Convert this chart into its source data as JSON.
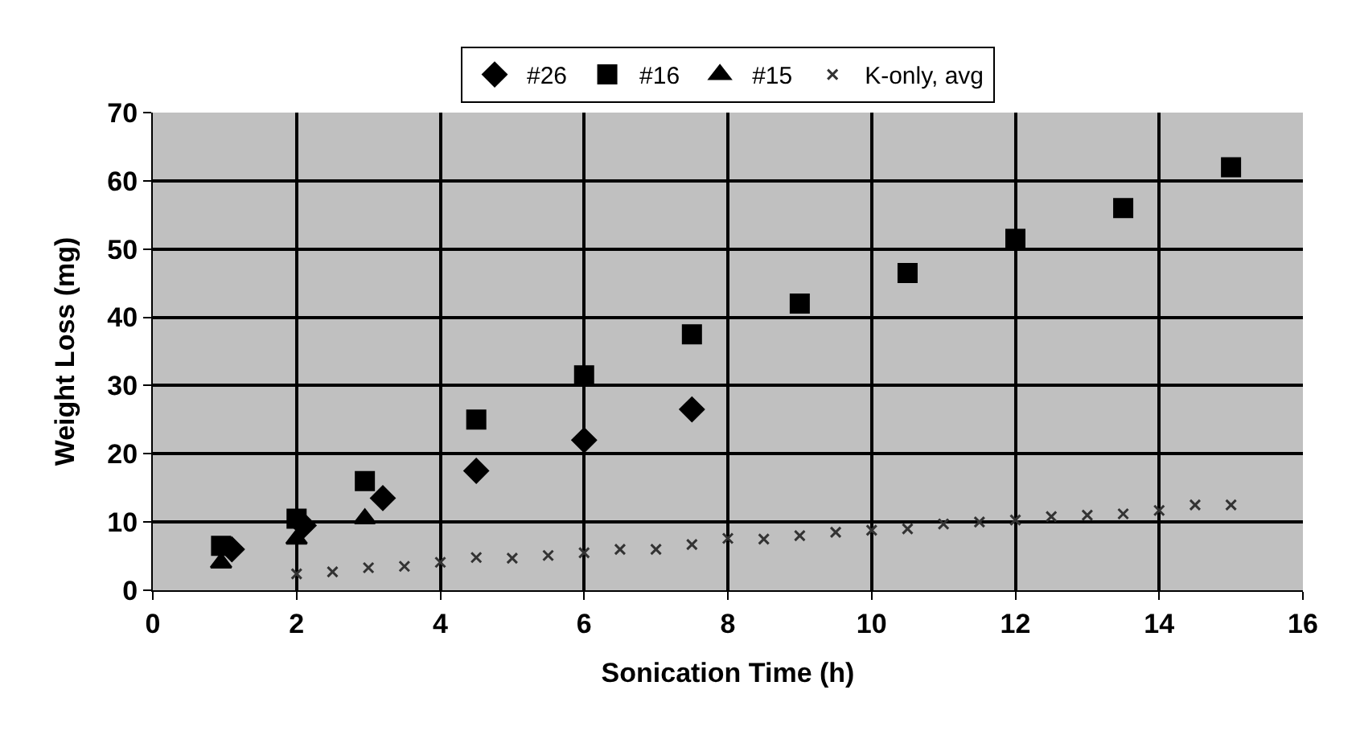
{
  "chart_data": {
    "type": "scatter",
    "xlabel": "Sonication Time (h)",
    "ylabel": "Weight Loss (mg)",
    "xlim": [
      0,
      16
    ],
    "ylim": [
      0,
      70
    ],
    "xticks": [
      0,
      2,
      4,
      6,
      8,
      10,
      12,
      14,
      16
    ],
    "yticks": [
      0,
      10,
      20,
      30,
      40,
      50,
      60,
      70
    ],
    "grid": true,
    "legend": "top",
    "series": [
      {
        "name": "#26",
        "color": "#000000",
        "marker": "diamond",
        "x": [
          1.1,
          2.1,
          3.2,
          4.5,
          6,
          7.5
        ],
        "values": [
          6,
          9.5,
          13.5,
          17.5,
          22,
          26.5
        ]
      },
      {
        "name": "#16",
        "color": "#000000",
        "marker": "square",
        "x": [
          0.95,
          2,
          2.95,
          4.5,
          6,
          7.5,
          9,
          10.5,
          12,
          13.5,
          15
        ],
        "values": [
          6.5,
          10.5,
          16,
          25,
          31.5,
          37.5,
          42,
          46.5,
          51.5,
          56,
          62
        ]
      },
      {
        "name": "#15",
        "color": "#000000",
        "marker": "triangle",
        "x": [
          0.95,
          2,
          2.95
        ],
        "values": [
          4,
          7.5,
          10.5
        ]
      },
      {
        "name": "K-only, avg",
        "color": "#333333",
        "marker": "cross",
        "x": [
          2,
          2.5,
          3,
          3.5,
          4,
          4.5,
          5,
          5.5,
          6,
          6.5,
          7,
          7.5,
          8,
          8.5,
          9,
          9.5,
          10,
          10.5,
          11,
          11.5,
          12,
          12.5,
          13,
          13.5,
          14,
          14.5,
          15
        ],
        "values": [
          2.4,
          2.7,
          3.3,
          3.5,
          4.1,
          4.8,
          4.7,
          5.1,
          5.5,
          6,
          6,
          6.7,
          7.6,
          7.5,
          8,
          8.5,
          8.8,
          9,
          9.7,
          10,
          10.3,
          10.8,
          11,
          11.2,
          11.7,
          12.5,
          12.5
        ]
      }
    ]
  }
}
